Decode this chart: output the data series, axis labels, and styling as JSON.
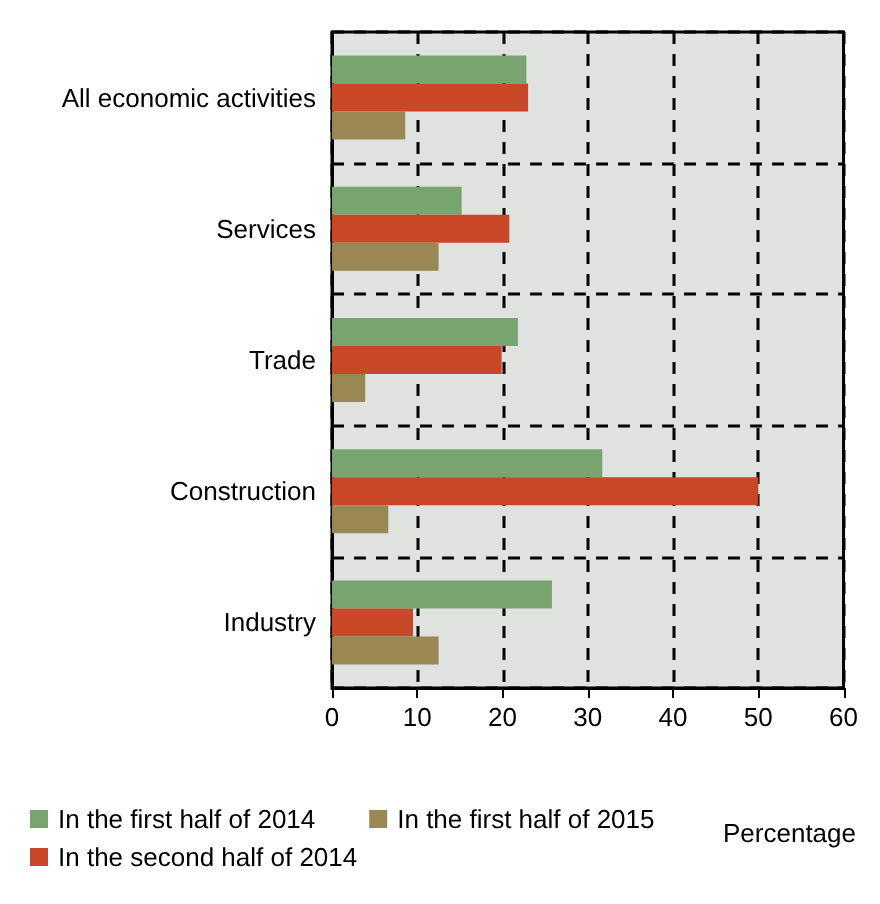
{
  "chart_data": {
    "type": "bar",
    "orientation": "horizontal",
    "xlabel": "Percentage",
    "categories": [
      "All economic activities",
      "Services",
      "Trade",
      "Construction",
      "Industry"
    ],
    "series": [
      {
        "name": "In the first half of 2014",
        "color": "#77a46f",
        "values": [
          22.8,
          15.2,
          21.8,
          31.7,
          25.8
        ]
      },
      {
        "name": "In the second half of 2014",
        "color": "#c84727",
        "values": [
          23.0,
          20.8,
          19.9,
          50.0,
          9.5
        ]
      },
      {
        "name": "In the first half of 2015",
        "color": "#9a8854",
        "values": [
          8.6,
          12.5,
          3.9,
          6.6,
          12.5
        ]
      }
    ],
    "xlim": [
      0,
      60
    ],
    "xticks": [
      0,
      10,
      20,
      30,
      40,
      50,
      60
    ],
    "grid": true,
    "legend": "bottom left"
  }
}
